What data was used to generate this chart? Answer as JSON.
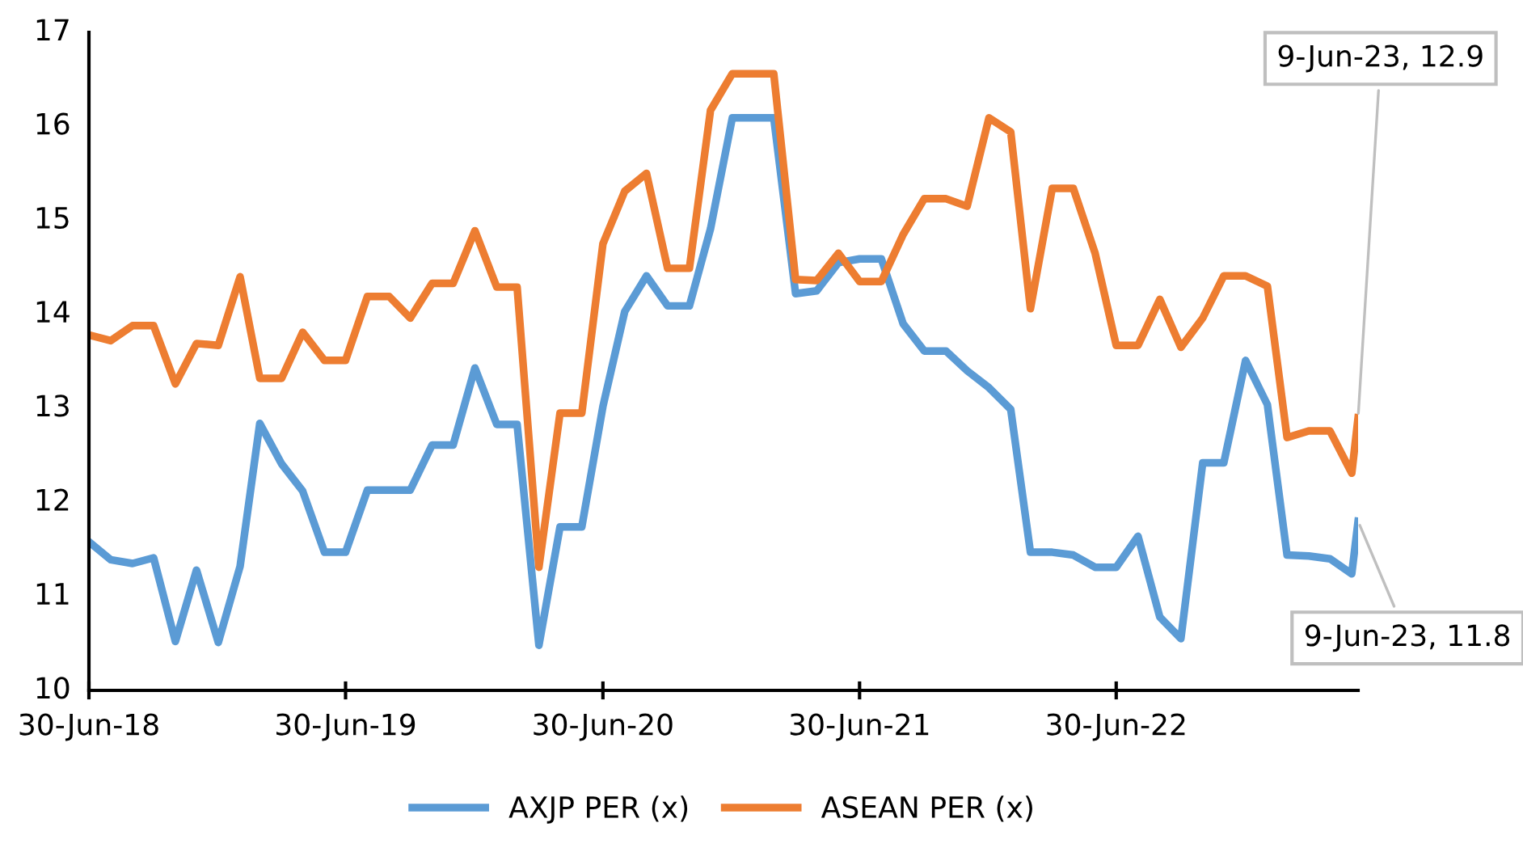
{
  "chart_data": {
    "type": "line",
    "x": [
      "2018-06-30",
      "2018-07-31",
      "2018-08-31",
      "2018-09-30",
      "2018-10-31",
      "2018-11-30",
      "2018-12-31",
      "2019-01-31",
      "2019-02-28",
      "2019-03-31",
      "2019-04-30",
      "2019-05-31",
      "2019-06-30",
      "2019-07-31",
      "2019-08-31",
      "2019-09-30",
      "2019-10-31",
      "2019-11-30",
      "2019-12-31",
      "2020-01-31",
      "2020-02-29",
      "2020-03-31",
      "2020-04-30",
      "2020-05-31",
      "2020-06-30",
      "2020-07-31",
      "2020-08-31",
      "2020-09-30",
      "2020-10-31",
      "2020-11-30",
      "2020-12-31",
      "2021-01-31",
      "2021-02-28",
      "2021-03-31",
      "2021-04-30",
      "2021-05-31",
      "2021-06-30",
      "2021-07-31",
      "2021-08-31",
      "2021-09-30",
      "2021-10-31",
      "2021-11-30",
      "2021-12-31",
      "2022-01-31",
      "2022-02-28",
      "2022-03-31",
      "2022-04-30",
      "2022-05-31",
      "2022-06-30",
      "2022-07-31",
      "2022-08-31",
      "2022-09-30",
      "2022-10-31",
      "2022-11-30",
      "2022-12-31",
      "2023-01-31",
      "2023-02-28",
      "2023-03-31",
      "2023-04-30",
      "2023-05-31",
      "2023-06-09"
    ],
    "series": [
      {
        "name": "AXJP PER (x)",
        "color": "#5b9bd5",
        "values": [
          11.58,
          11.39,
          11.35,
          11.41,
          10.52,
          11.28,
          10.51,
          11.32,
          12.84,
          12.41,
          12.12,
          11.47,
          11.47,
          12.13,
          12.13,
          12.13,
          12.61,
          12.61,
          13.43,
          12.83,
          12.83,
          10.48,
          11.74,
          11.74,
          13.02,
          14.03,
          14.41,
          14.09,
          14.09,
          14.91,
          16.09,
          16.09,
          16.09,
          14.22,
          14.25,
          14.55,
          14.59,
          14.59,
          13.9,
          13.61,
          13.61,
          13.4,
          13.22,
          12.99,
          11.47,
          11.47,
          11.44,
          11.31,
          11.31,
          11.64,
          10.78,
          10.55,
          12.42,
          12.42,
          13.51,
          13.04,
          11.44,
          11.43,
          11.4,
          11.24,
          11.8
        ]
      },
      {
        "name": "ASEAN PER (x)",
        "color": "#ed7d31",
        "values": [
          13.78,
          13.72,
          13.88,
          13.88,
          13.26,
          13.69,
          13.67,
          14.4,
          13.32,
          13.32,
          13.81,
          13.51,
          13.51,
          14.19,
          14.19,
          13.96,
          14.33,
          14.33,
          14.89,
          14.29,
          14.29,
          11.31,
          12.95,
          12.95,
          14.75,
          15.31,
          15.5,
          14.49,
          14.49,
          16.17,
          16.56,
          16.56,
          16.56,
          14.37,
          14.36,
          14.65,
          14.35,
          14.35,
          14.85,
          15.23,
          15.23,
          15.15,
          16.09,
          15.94,
          14.06,
          15.34,
          15.34,
          14.65,
          13.67,
          13.67,
          14.16,
          13.65,
          13.96,
          14.41,
          14.41,
          14.3,
          12.69,
          12.76,
          12.76,
          12.31,
          12.9
        ]
      }
    ],
    "xlim": [
      "2018-06-30",
      "2023-06-09"
    ],
    "xticks": [
      {
        "value": "2018-06-30",
        "label": "30-Jun-18"
      },
      {
        "value": "2019-06-30",
        "label": "30-Jun-19"
      },
      {
        "value": "2020-06-30",
        "label": "30-Jun-20"
      },
      {
        "value": "2021-06-30",
        "label": "30-Jun-21"
      },
      {
        "value": "2022-06-30",
        "label": "30-Jun-22"
      }
    ],
    "ylim": [
      10,
      17
    ],
    "yticks": [
      10,
      11,
      12,
      13,
      14,
      15,
      16,
      17
    ],
    "annotations": [
      {
        "text": "9-Jun-23, 12.9",
        "x": "2023-06-09",
        "y": 12.9
      },
      {
        "text": "9-Jun-23, 11.8",
        "x": "2023-06-09",
        "y": 11.8
      }
    ],
    "grid": false,
    "legend": "bottom",
    "marker": "none",
    "line_style": "solid"
  }
}
